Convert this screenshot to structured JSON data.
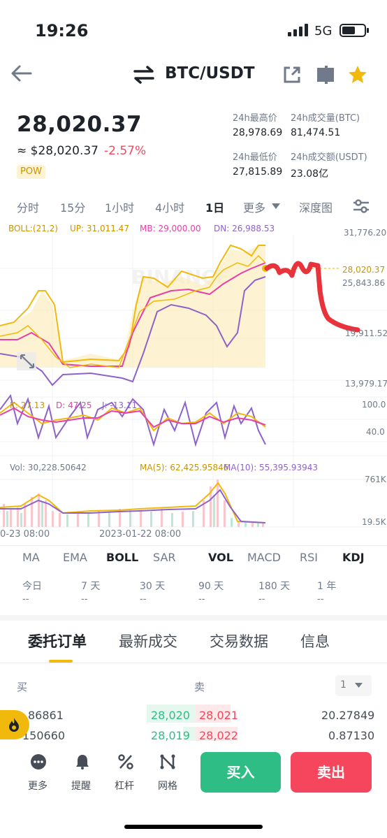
{
  "status": {
    "time": "19:26",
    "network": "5G"
  },
  "header": {
    "title": "BTC/USDT",
    "icons": [
      "back-arrow-icon",
      "swap-arrows-icon",
      "share-icon",
      "layout-icon",
      "star-icon"
    ]
  },
  "ticker": {
    "last_price": "28,020.37",
    "approx": "≈ $28,020.37",
    "change": "-2.57%",
    "tag": "POW",
    "high_label": "24h最高价",
    "high": "28,978.69",
    "low_label": "24h最低价",
    "low": "27,815.89",
    "vol_btc_label": "24h成交量(BTC)",
    "vol_btc": "81,474.51",
    "vol_usdt_label": "24h成交额(USDT)",
    "vol_usdt": "23.08亿"
  },
  "intervals": [
    "分时",
    "15分",
    "1小时",
    "4小时",
    "1日",
    "更多",
    "深度图"
  ],
  "active_interval": "1日",
  "chart": {
    "boll_label": "BOLL:(21,2)",
    "up_label": "UP: 31,011.47",
    "mb_label": "MB: 29,000.00",
    "dn_label": "DN: 26,988.53",
    "price_axis": [
      "31,776.20",
      "25,843.86",
      "19,911.52",
      "13,979.17"
    ],
    "current_price_tag": "28,020.37",
    "watermark": "BINANCE",
    "kdj_k": "K: 27.13",
    "kdj_d": "D: 47.25",
    "kdj_j": "J: -13.11",
    "kdj_axis": [
      "100.0",
      "40.0"
    ],
    "vol_label": "Vol: 30,228.50642",
    "ma5_label": "MA(5): 62,425.95846",
    "ma10_label": "MA(10): 55,395.93943",
    "vol_axis": [
      "761K",
      "19.5K"
    ],
    "time_axis": [
      "0-23 08:00",
      "2023-01-22 08:00"
    ],
    "colors": {
      "up": "#f0b90b",
      "mid": "#e83fa8",
      "dn": "#8e63c9",
      "annotation": "#e8323c"
    }
  },
  "indicator_tabs": [
    "MA",
    "EMA",
    "BOLL",
    "SAR",
    "VOL",
    "MACD",
    "RSI",
    "KDJ"
  ],
  "active_indicators": [
    "BOLL",
    "VOL",
    "KDJ"
  ],
  "performance": {
    "labels": [
      "今日",
      "7 天",
      "30 天",
      "90 天",
      "180 天",
      "1 年"
    ],
    "values": [
      "--",
      "--",
      "--",
      "--",
      "--",
      "--"
    ]
  },
  "section_tabs": [
    "委托订单",
    "最新成交",
    "交易数据",
    "信息"
  ],
  "orderbook": {
    "buy_label": "买",
    "sell_label": "卖",
    "precision": "1",
    "rows": [
      {
        "bid_qty": "86861",
        "bid": "28,020",
        "ask": "28,021",
        "ask_qty": "20.27849"
      },
      {
        "bid_qty": "150660",
        "bid": "28,019",
        "ask": "28,022",
        "ask_qty": "0.87130"
      }
    ]
  },
  "bottom_nav": [
    "更多",
    "提醒",
    "杠杆",
    "网格"
  ],
  "buy_button": "买入",
  "sell_button": "卖出"
}
